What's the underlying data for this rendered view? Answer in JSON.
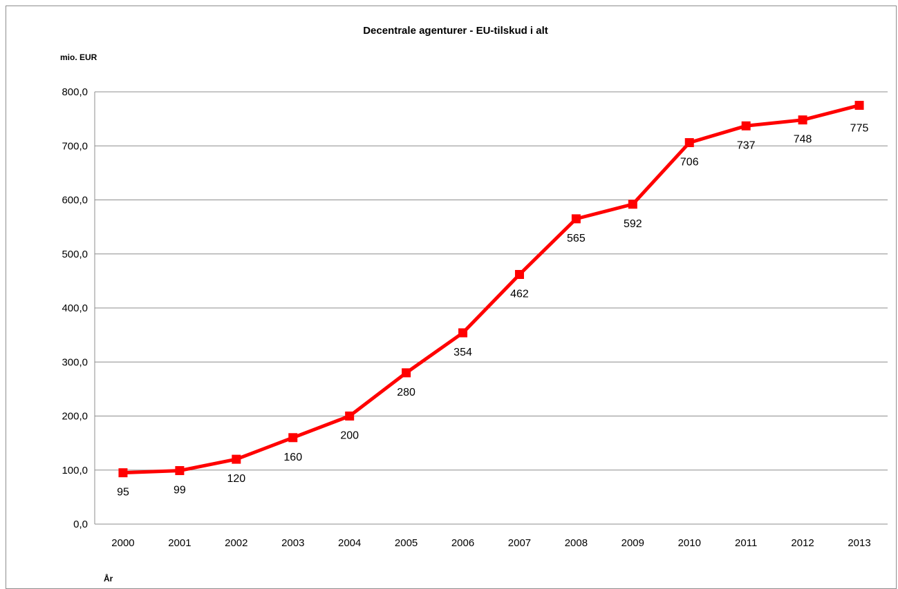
{
  "chart_data": {
    "type": "line",
    "title": "Decentrale agenturer - EU-tilskud i alt",
    "ylabel": "mio. EUR",
    "xlabel": "År",
    "categories": [
      "2000",
      "2001",
      "2002",
      "2003",
      "2004",
      "2005",
      "2006",
      "2007",
      "2008",
      "2009",
      "2010",
      "2011",
      "2012",
      "2013"
    ],
    "series": [
      {
        "values": [
          95,
          99,
          120,
          160,
          200,
          280,
          354,
          462,
          565,
          592,
          706,
          737,
          748,
          775
        ],
        "data_labels": [
          "95",
          "99",
          "120",
          "160",
          "200",
          "280",
          "354",
          "462",
          "565",
          "592",
          "706",
          "737",
          "748",
          "775"
        ],
        "color": "#ff0000",
        "marker": "square"
      }
    ],
    "ylim": [
      0,
      800
    ],
    "yticks": [
      0,
      100,
      200,
      300,
      400,
      500,
      600,
      700,
      800
    ],
    "ytick_labels": [
      "0,0",
      "100,0",
      "200,0",
      "300,0",
      "400,0",
      "500,0",
      "600,0",
      "700,0",
      "800,0"
    ],
    "grid": true,
    "legend": "none"
  }
}
